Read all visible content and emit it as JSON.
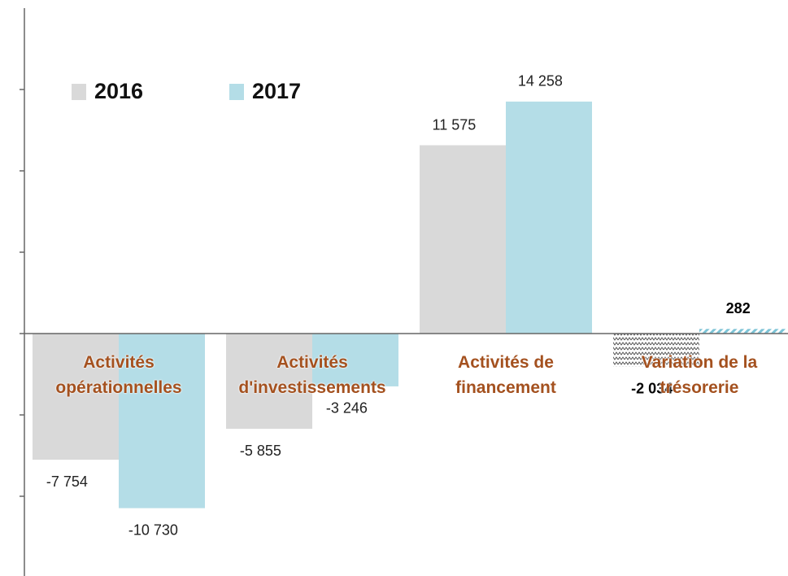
{
  "chart_data": {
    "type": "bar",
    "categories": [
      "Activités\nopérationnelles",
      "Activités\nd'investissements",
      "Activités de\nfinancement",
      "Variation de la\ntrésorerie"
    ],
    "series": [
      {
        "name": "2016",
        "color": "#d9d9d9",
        "values": [
          -7754,
          -5855,
          11575,
          -2034
        ],
        "value_labels": [
          "-7 754",
          "-5 855",
          "11 575",
          "-2 034"
        ]
      },
      {
        "name": "2017",
        "color": "#b4dde7",
        "values": [
          -10730,
          -3246,
          14258,
          282
        ],
        "value_labels": [
          "-10 730",
          "-3 246",
          "14 258",
          "282"
        ]
      }
    ],
    "hatched_categories": [
      3
    ],
    "ylim": [
      -14900,
      20000
    ],
    "yticks": [
      -10000,
      -5000,
      0,
      5000,
      10000,
      15000
    ],
    "legend": "top-left"
  }
}
